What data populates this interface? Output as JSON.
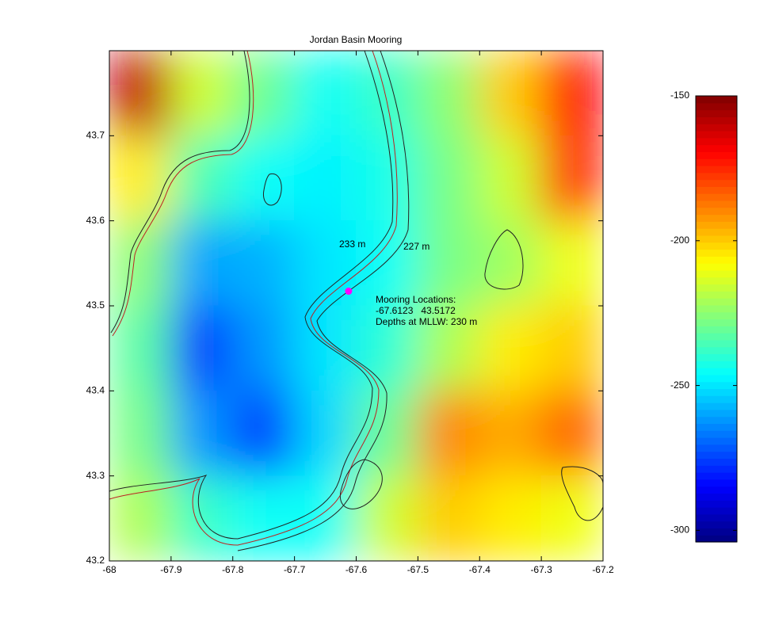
{
  "chart_data": {
    "type": "heatmap",
    "title": "Jordan Basin Mooring",
    "xlim": [
      -68,
      -67.2
    ],
    "ylim": [
      43.2,
      43.8
    ],
    "xticks": [
      -68,
      -67.9,
      -67.8,
      -67.7,
      -67.6,
      -67.5,
      -67.4,
      -67.3,
      -67.2
    ],
    "yticks": [
      43.2,
      43.3,
      43.4,
      43.5,
      43.6,
      43.7
    ],
    "x": [
      -67.95,
      -67.85,
      -67.75,
      -67.65,
      -67.55,
      -67.45,
      -67.35,
      -67.25
    ],
    "y": [
      43.75,
      43.65,
      43.55,
      43.45,
      43.35,
      43.25
    ],
    "values": [
      [
        -160,
        -215,
        -230,
        -245,
        -238,
        -225,
        -200,
        -170
      ],
      [
        -205,
        -235,
        -245,
        -248,
        -243,
        -228,
        -215,
        -175
      ],
      [
        -225,
        -260,
        -258,
        -250,
        -245,
        -228,
        -222,
        -210
      ],
      [
        -232,
        -275,
        -262,
        -250,
        -240,
        -220,
        -205,
        -200
      ],
      [
        -228,
        -262,
        -275,
        -252,
        -230,
        -190,
        -195,
        -185
      ],
      [
        -220,
        -238,
        -245,
        -245,
        -215,
        -200,
        -205,
        -210
      ]
    ],
    "colormap": "jet",
    "clim": [
      -304,
      -150
    ],
    "colorbar_ticks": [
      -150,
      -200,
      -250,
      -300
    ],
    "contour_labels": [
      "233 m",
      "227 m"
    ],
    "annotations": [
      "Mooring Locations:",
      "-67.6123   43.5172",
      "Depths at MLLW: 230 m"
    ],
    "mooring": {
      "x": -67.6123,
      "y": 43.5172,
      "color": "#ff00ff"
    }
  }
}
